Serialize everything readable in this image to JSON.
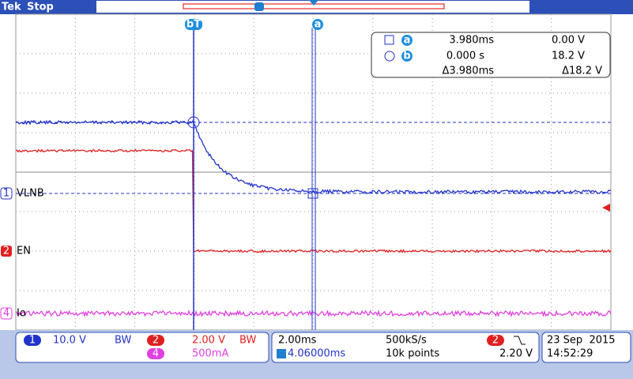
{
  "header": {
    "brand": "Tek",
    "status": "Stop"
  },
  "cursor_labels": {
    "b": "bT",
    "a": "a"
  },
  "readout": {
    "row_a": {
      "id": "a",
      "time": "3.980ms",
      "volts": "0.00 V"
    },
    "row_b": {
      "id": "b",
      "time": "0.000 s",
      "volts": "18.2 V"
    },
    "delta": {
      "time": "Δ3.980ms",
      "volts": "Δ18.2 V"
    }
  },
  "channels": [
    {
      "number": "1",
      "label": "VLNB"
    },
    {
      "number": "2",
      "label": "EN"
    },
    {
      "number": "4",
      "label": "Io"
    }
  ],
  "status_bar": {
    "ch1": {
      "number": "1",
      "scale": "10.0 V"
    },
    "ch2": {
      "number": "2",
      "scale": "2.00 V"
    },
    "ch4": {
      "number": "4",
      "scale": "500mA"
    },
    "bandwidth": "BW",
    "timebase": "2.00ms",
    "sample_rate": "500kS/s",
    "trigger_position": "4.06000ms",
    "record_length": "10k points",
    "trigger_channel": "2",
    "trigger_level": "2.20 V",
    "date": "23 Sep  2015",
    "time": "14:52:29"
  }
}
